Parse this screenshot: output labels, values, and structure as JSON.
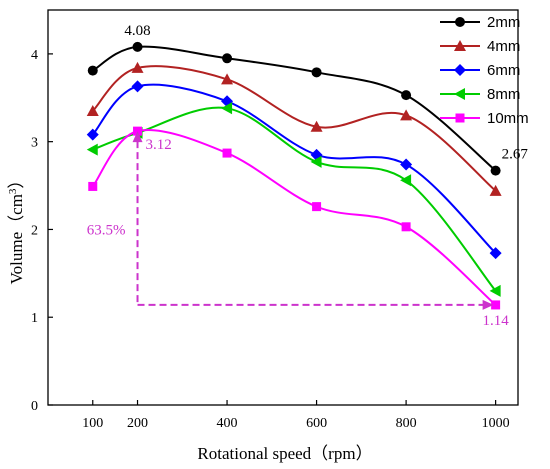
{
  "chart_data": {
    "type": "line",
    "xlabel": "Rotational speed（rpm）",
    "ylabel_main": "Volume（cm",
    "ylabel_sup": "3",
    "ylabel_close": "）",
    "categories": [
      "100",
      "200",
      "400",
      "600",
      "800",
      "1000"
    ],
    "x": [
      100,
      200,
      400,
      600,
      800,
      1000
    ],
    "xlim": [
      0,
      1050
    ],
    "ylim": [
      0,
      4.5
    ],
    "y_ticks": [
      "0",
      "1",
      "2",
      "3",
      "4"
    ],
    "grid": false,
    "legend_position": "top-right",
    "series": [
      {
        "name": "2mm",
        "color": "#000000",
        "marker": "circle",
        "values": [
          3.81,
          4.08,
          3.95,
          3.79,
          3.53,
          2.67
        ]
      },
      {
        "name": "4mm",
        "color": "#b22222",
        "marker": "triangle-up",
        "values": [
          3.35,
          3.84,
          3.71,
          3.17,
          3.3,
          2.44
        ]
      },
      {
        "name": "6mm",
        "color": "#0000ff",
        "marker": "diamond",
        "values": [
          3.08,
          3.63,
          3.46,
          2.85,
          2.74,
          1.73
        ]
      },
      {
        "name": "8mm",
        "color": "#00cc00",
        "marker": "triangle-left",
        "values": [
          2.91,
          3.1,
          3.38,
          2.77,
          2.56,
          1.3
        ]
      },
      {
        "name": "10mm",
        "color": "#ff00ff",
        "marker": "square",
        "values": [
          2.49,
          3.12,
          2.87,
          2.26,
          2.03,
          1.14
        ]
      }
    ],
    "annotations": {
      "peak_label": "4.08",
      "end_label": "2.67",
      "mag_high_label": "3.12",
      "mag_low_label": "1.14",
      "drop_label": "63.5%",
      "annotation_color": "#cc33cc"
    }
  }
}
